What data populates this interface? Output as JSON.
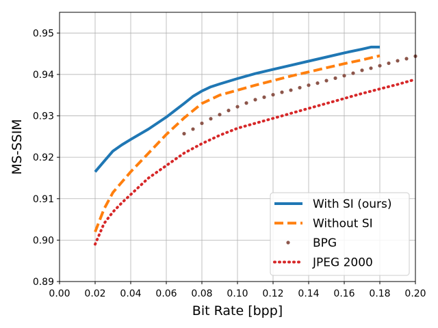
{
  "chart_data": {
    "type": "line",
    "xlabel": "Bit Rate [bpp]",
    "ylabel": "MS-SSIM",
    "xlim": [
      0.0,
      0.2
    ],
    "ylim": [
      0.89,
      0.955
    ],
    "xticks": [
      "0.00",
      "0.02",
      "0.04",
      "0.06",
      "0.08",
      "0.10",
      "0.12",
      "0.14",
      "0.16",
      "0.18",
      "0.20"
    ],
    "yticks": [
      "0.89",
      "0.90",
      "0.91",
      "0.92",
      "0.93",
      "0.94",
      "0.95"
    ],
    "grid": true,
    "legend_position": "lower-right",
    "series": [
      {
        "name": "With SI (ours)",
        "color": "#1f77b4",
        "style": "solid",
        "x": [
          0.02,
          0.025,
          0.03,
          0.035,
          0.04,
          0.05,
          0.06,
          0.07,
          0.075,
          0.08,
          0.085,
          0.09,
          0.1,
          0.11,
          0.12,
          0.13,
          0.14,
          0.15,
          0.16,
          0.17,
          0.175,
          0.18
        ],
        "y": [
          0.9165,
          0.919,
          0.9215,
          0.923,
          0.9243,
          0.9268,
          0.9297,
          0.933,
          0.9347,
          0.936,
          0.937,
          0.9377,
          0.939,
          0.9402,
          0.9412,
          0.9422,
          0.9432,
          0.9442,
          0.9452,
          0.9461,
          0.9466,
          0.9466
        ]
      },
      {
        "name": "Without SI",
        "color": "#ff7f0e",
        "style": "dashed",
        "x": [
          0.02,
          0.025,
          0.03,
          0.035,
          0.04,
          0.05,
          0.06,
          0.07,
          0.08,
          0.09,
          0.1,
          0.11,
          0.12,
          0.13,
          0.14,
          0.15,
          0.16,
          0.17,
          0.18
        ],
        "y": [
          0.902,
          0.9075,
          0.9115,
          0.914,
          0.9165,
          0.921,
          0.9255,
          0.9295,
          0.933,
          0.935,
          0.9362,
          0.9374,
          0.9385,
          0.9396,
          0.9406,
          0.9416,
          0.9426,
          0.9435,
          0.9445
        ]
      },
      {
        "name": "BPG",
        "color": "#8c564b",
        "style": "dotted",
        "x": [
          0.07,
          0.075,
          0.08,
          0.085,
          0.09,
          0.095,
          0.1,
          0.105,
          0.11,
          0.115,
          0.12,
          0.125,
          0.13,
          0.135,
          0.14,
          0.145,
          0.15,
          0.155,
          0.16,
          0.165,
          0.17,
          0.175,
          0.18,
          0.185,
          0.19,
          0.195,
          0.2
        ],
        "y": [
          0.9257,
          0.9268,
          0.9282,
          0.9293,
          0.9303,
          0.9313,
          0.9322,
          0.9331,
          0.9339,
          0.9345,
          0.9351,
          0.9357,
          0.9362,
          0.9368,
          0.9374,
          0.9379,
          0.9385,
          0.9391,
          0.9397,
          0.9403,
          0.941,
          0.9415,
          0.9421,
          0.9427,
          0.9433,
          0.9438,
          0.9444
        ]
      },
      {
        "name": "JPEG 2000",
        "color": "#d62728",
        "style": "dotted",
        "x": [
          0.02,
          0.025,
          0.03,
          0.035,
          0.04,
          0.045,
          0.05,
          0.06,
          0.07,
          0.08,
          0.09,
          0.1,
          0.11,
          0.12,
          0.13,
          0.14,
          0.15,
          0.16,
          0.17,
          0.18,
          0.19,
          0.2
        ],
        "y": [
          0.899,
          0.904,
          0.9068,
          0.909,
          0.911,
          0.913,
          0.915,
          0.918,
          0.921,
          0.9233,
          0.9253,
          0.927,
          0.9282,
          0.9294,
          0.9306,
          0.9318,
          0.933,
          0.9342,
          0.9354,
          0.9365,
          0.9376,
          0.9388
        ]
      }
    ]
  }
}
